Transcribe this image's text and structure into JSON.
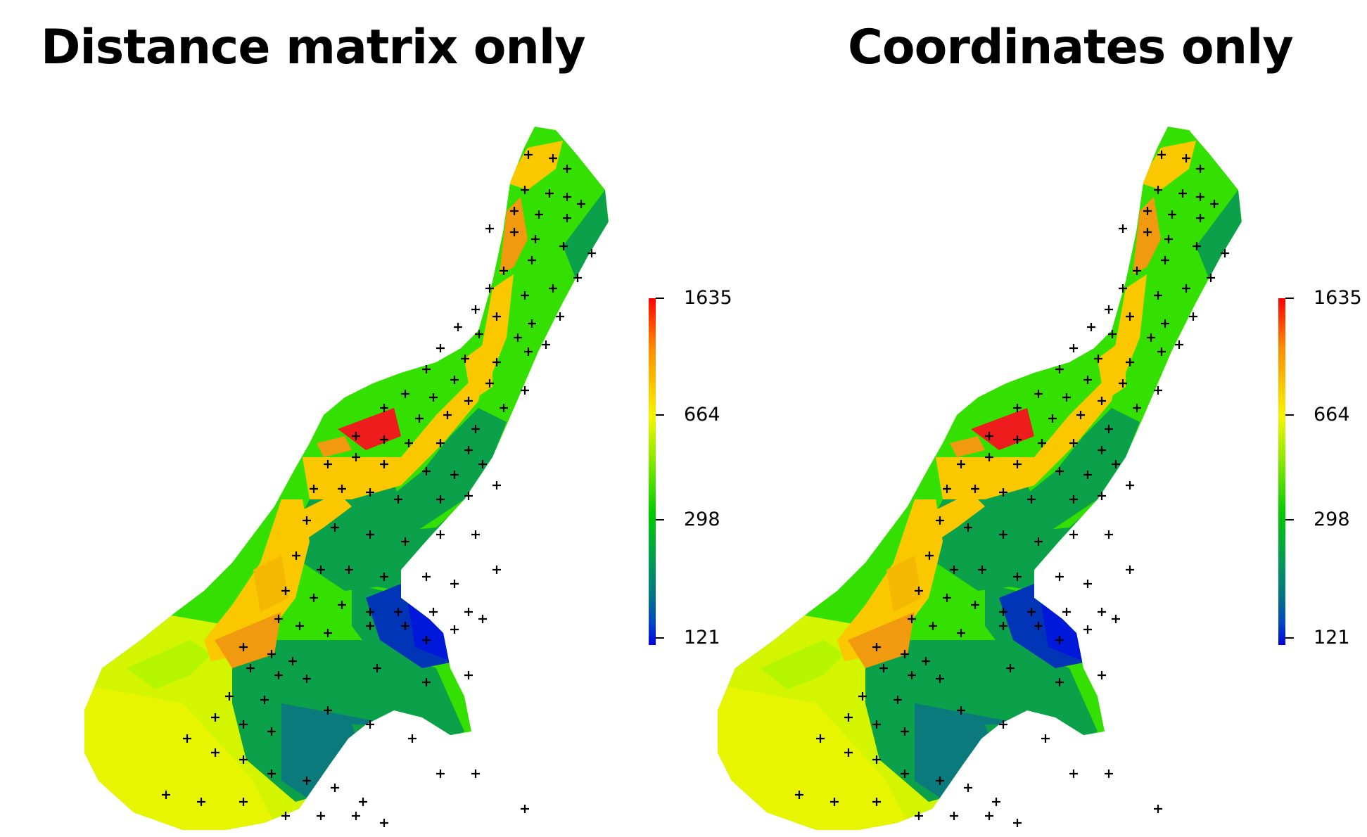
{
  "panels": [
    {
      "title": "Distance matrix only"
    },
    {
      "title": "Coordinates only"
    }
  ],
  "legend": {
    "ticks": [
      "1635",
      "664",
      "298",
      "121"
    ],
    "tick_values": [
      1635,
      664,
      298,
      121
    ],
    "colors": [
      "#ff0000",
      "#ff8a00",
      "#f5f500",
      "#7de800",
      "#00cc00",
      "#009a56",
      "#007585",
      "#0044c8",
      "#0000dd"
    ]
  },
  "colors": {
    "high": "#ee1c1c",
    "orange": "#f19a10",
    "amber": "#fbc800",
    "yellow": "#e8f500",
    "lime": "#b6f500",
    "green": "#33e000",
    "teal_green": "#0aa14a",
    "teal": "#0b7a7c",
    "blue": "#1035cc",
    "deep_blue": "#0b16da",
    "marker": "#000000"
  }
}
